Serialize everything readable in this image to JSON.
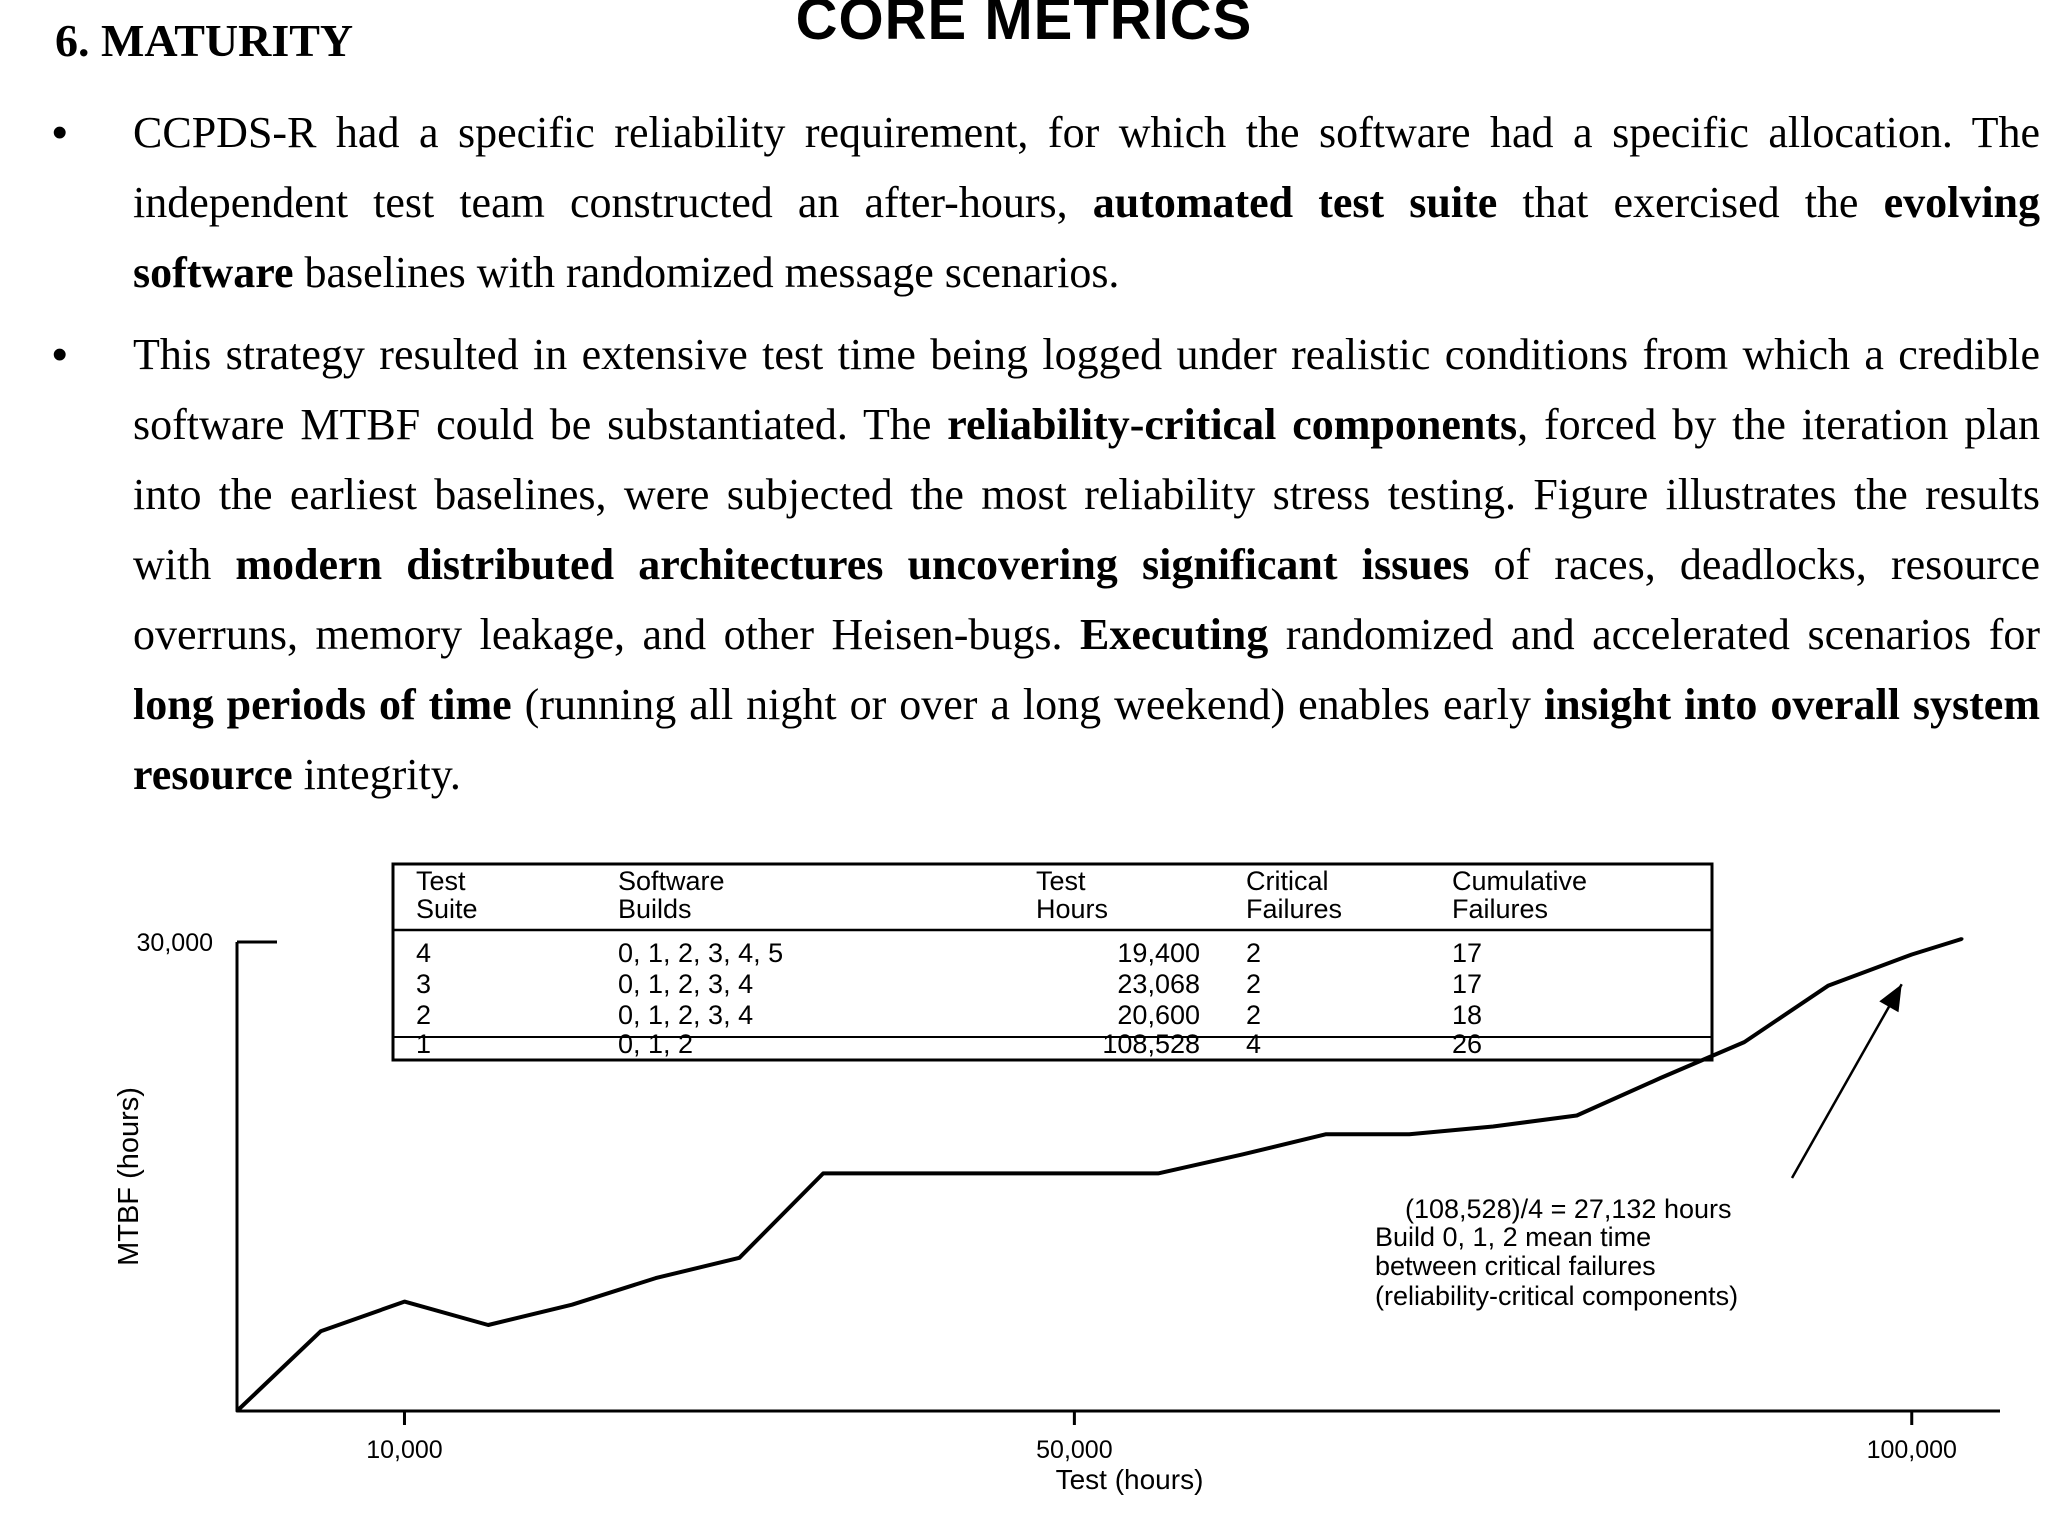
{
  "slide": {
    "title": "CORE METRICS",
    "section_heading": "6. MATURITY"
  },
  "bullets": [
    {
      "segments": [
        {
          "text": "CCPDS-R had a specific reliability requirement, for which the software had a specific allocation. The independent test team constructed an after-hours, ",
          "bold": false
        },
        {
          "text": "automated test suite",
          "bold": true
        },
        {
          "text": " that exercised the ",
          "bold": false
        },
        {
          "text": "evolving software",
          "bold": true
        },
        {
          "text": " baselines with randomized message scenarios.",
          "bold": false
        }
      ]
    },
    {
      "segments": [
        {
          "text": "This strategy resulted in extensive test time being logged under realistic conditions from which a credible software MTBF could be substantiated. The ",
          "bold": false
        },
        {
          "text": "reliability-critical components",
          "bold": true
        },
        {
          "text": ", forced by the iteration plan into the earliest baselines, were subjected the most reliability stress testing. Figure illustrates the results with ",
          "bold": false
        },
        {
          "text": "modern distributed architectures uncovering significant issues",
          "bold": true
        },
        {
          "text": " of races, deadlocks, resource overruns, memory leakage, and other Heisen-bugs. ",
          "bold": false
        },
        {
          "text": "Executing",
          "bold": true
        },
        {
          "text": " randomized and accelerated scenarios for ",
          "bold": false
        },
        {
          "text": "long periods of time",
          "bold": true
        },
        {
          "text": " (running all night or over a long weekend) enables early ",
          "bold": false
        },
        {
          "text": "insight into overall system resource",
          "bold": true
        },
        {
          "text": " integrity.",
          "bold": false
        }
      ]
    }
  ],
  "figure_table": {
    "headers": [
      [
        "Test",
        "Suite"
      ],
      [
        "Software",
        "Builds"
      ],
      [
        "Test",
        "Hours"
      ],
      [
        "Critical",
        "Failures"
      ],
      [
        "Cumulative",
        "Failures"
      ]
    ],
    "rows": [
      [
        "4",
        "0, 1, 2, 3, 4, 5",
        "19,400",
        "2",
        "17"
      ],
      [
        "3",
        "0, 1, 2, 3, 4",
        "23,068",
        "2",
        "17"
      ],
      [
        "2",
        "0, 1, 2, 3, 4",
        "20,600",
        "2",
        "18"
      ],
      [
        "1",
        "0, 1, 2",
        "108,528",
        "4",
        "26"
      ]
    ]
  },
  "chart_data": {
    "type": "line",
    "title": "",
    "xlabel": "Test (hours)",
    "ylabel": "MTBF (hours)",
    "xlim": [
      0,
      103000
    ],
    "ylim": [
      0,
      30000
    ],
    "xticks": [
      10000,
      50000,
      100000
    ],
    "xtick_labels": [
      "10,000",
      "50,000",
      "100,000"
    ],
    "yticks": [
      30000
    ],
    "ytick_labels": [
      "30,000"
    ],
    "grid": false,
    "series": [
      {
        "x": [
          0,
          5000,
          10000,
          15000,
          20000,
          25000,
          30000,
          35000,
          40000,
          45000,
          50000,
          55000,
          60000,
          65000,
          70000,
          75000,
          80000,
          85000,
          90000,
          95000,
          100000,
          103000
        ],
        "y": [
          0,
          5100,
          7000,
          5500,
          6800,
          8500,
          9800,
          15200,
          15200,
          15200,
          15200,
          15200,
          16400,
          17700,
          17700,
          18200,
          18900,
          21300,
          23600,
          27200,
          29200,
          30200
        ]
      }
    ],
    "annotation": {
      "lines": [
        "(108,528)/4 = 27,132 hours",
        "Build 0, 1, 2 mean time",
        "between critical failures",
        "(reliability-critical components)"
      ],
      "arrow_target": [
        99400,
        27300
      ]
    }
  }
}
